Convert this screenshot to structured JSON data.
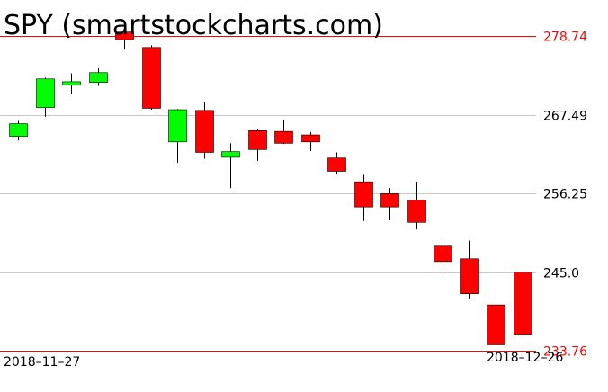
{
  "chart_data": {
    "type": "candlestick",
    "title": "SPY (smartstockcharts.com)",
    "y_ticks": [
      "278.74",
      "267.49",
      "256.25",
      "245.0",
      "233.76"
    ],
    "x_start_label": "2018–11–27",
    "x_end_label": "2018–12–26",
    "ylim": [
      233.76,
      278.74
    ],
    "grid": true,
    "colors": {
      "up": "#00ff00",
      "down": "#ff0000",
      "wick": "#000000",
      "grid": "#c8c8c8",
      "bound": "#ff0000",
      "bound_label": "#ff0000",
      "tick_label": "#000000"
    },
    "candles": [
      {
        "open": 264.4,
        "close": 266.2,
        "high": 266.6,
        "low": 263.8
      },
      {
        "open": 268.5,
        "close": 272.6,
        "high": 272.8,
        "low": 267.2
      },
      {
        "open": 271.7,
        "close": 272.2,
        "high": 273.4,
        "low": 270.4
      },
      {
        "open": 272.1,
        "close": 273.5,
        "high": 274.1,
        "low": 271.6
      },
      {
        "open": 279.3,
        "close": 278.2,
        "high": 279.3,
        "low": 276.8
      },
      {
        "open": 277.1,
        "close": 268.4,
        "high": 277.4,
        "low": 268.2
      },
      {
        "open": 263.6,
        "close": 268.2,
        "high": 268.3,
        "low": 260.6
      },
      {
        "open": 268.1,
        "close": 262.1,
        "high": 269.3,
        "low": 261.2
      },
      {
        "open": 261.4,
        "close": 262.2,
        "high": 263.4,
        "low": 257.0
      },
      {
        "open": 265.2,
        "close": 262.5,
        "high": 265.4,
        "low": 260.9
      },
      {
        "open": 265.1,
        "close": 263.4,
        "high": 266.7,
        "low": 263.3
      },
      {
        "open": 264.6,
        "close": 263.6,
        "high": 265.0,
        "low": 262.3
      },
      {
        "open": 261.3,
        "close": 259.4,
        "high": 262.1,
        "low": 259.0
      },
      {
        "open": 257.9,
        "close": 254.3,
        "high": 258.9,
        "low": 252.3
      },
      {
        "open": 256.2,
        "close": 254.3,
        "high": 257.0,
        "low": 252.4
      },
      {
        "open": 255.3,
        "close": 252.1,
        "high": 257.9,
        "low": 251.1
      },
      {
        "open": 248.7,
        "close": 246.5,
        "high": 249.7,
        "low": 244.2
      },
      {
        "open": 246.9,
        "close": 241.9,
        "high": 249.5,
        "low": 241.1
      },
      {
        "open": 240.3,
        "close": 234.6,
        "high": 241.6,
        "low": 234.6
      },
      {
        "open": 245.0,
        "close": 236.0,
        "high": 245.0,
        "low": 234.2
      }
    ]
  }
}
